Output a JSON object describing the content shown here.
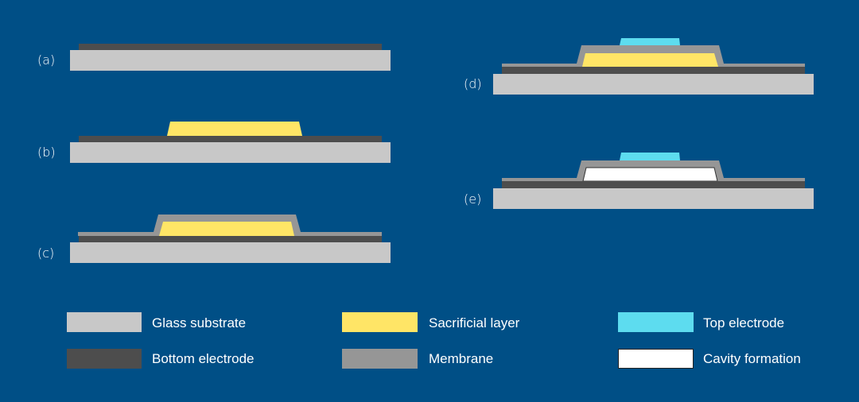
{
  "steps": [
    {
      "label": "(a)"
    },
    {
      "label": "(b)"
    },
    {
      "label": "(c)"
    },
    {
      "label": "(d)"
    },
    {
      "label": "(e)"
    }
  ],
  "legend": [
    {
      "label": "Glass substrate",
      "color": "#c8c8c8"
    },
    {
      "label": "Sacrificial layer",
      "color": "#ffe566"
    },
    {
      "label": "Top electrode",
      "color": "#5ddcef"
    },
    {
      "label": "Bottom electrode",
      "color": "#4d4d4d"
    },
    {
      "label": "Membrane",
      "color": "#969696"
    },
    {
      "label": "Cavity formation",
      "color": "#ffffff"
    }
  ],
  "background": "#004f86"
}
